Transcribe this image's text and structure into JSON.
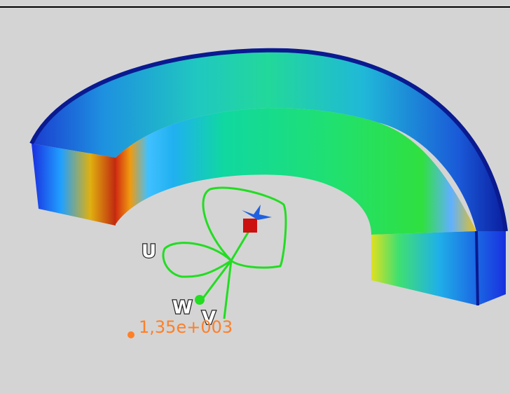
{
  "labels": {
    "u": "U",
    "w": "W",
    "v": "V",
    "value": "1,35e+003"
  }
}
